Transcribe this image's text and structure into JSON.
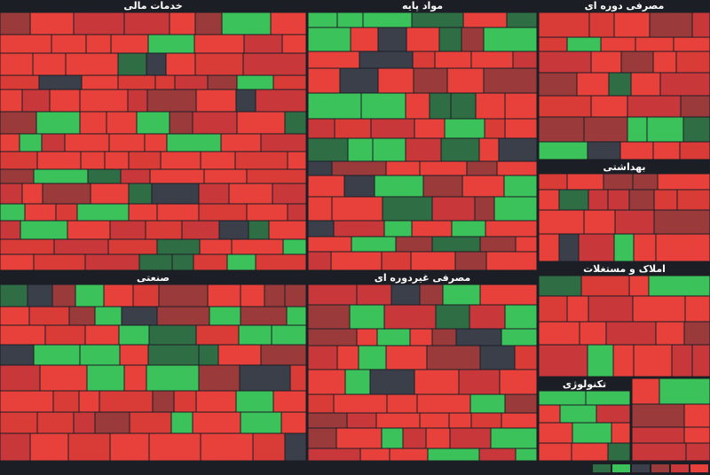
{
  "sectors": [
    {
      "title": "خدمات مالی"
    },
    {
      "title": "مواد پایه"
    },
    {
      "title": "مصرفی دوره ای"
    },
    {
      "title": "بهداشتی"
    },
    {
      "title": "صنعتی"
    },
    {
      "title": "مصرفی غیردوره ای"
    },
    {
      "title": "املاک و مستغلات"
    },
    {
      "title": "تکنولوژی"
    }
  ]
}
